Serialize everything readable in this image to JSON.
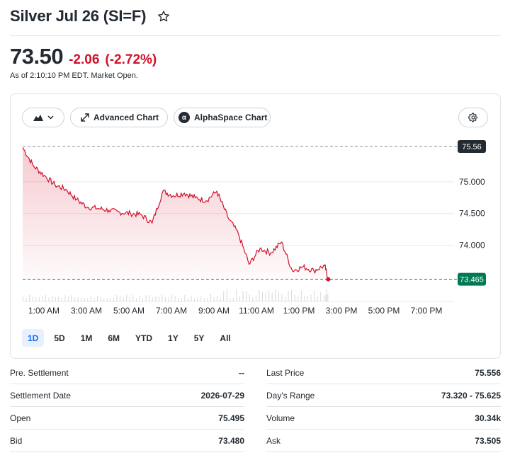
{
  "header": {
    "title": "Silver Jul 26 (SI=F)",
    "price": "73.50",
    "change": "-2.06",
    "change_pct": "(-2.72%)",
    "as_of": "As of 2:10:10 PM EDT. Market Open."
  },
  "toolbar": {
    "chart_type_icon": "mountain-chart-icon",
    "advanced_chart_label": "Advanced Chart",
    "alphaspace_chart_label": "AlphaSpace Chart",
    "alphaspace_badge": "α",
    "settings_icon": "gear-icon"
  },
  "chart": {
    "prev_close_label": "75.56",
    "last_price_label": "73.465",
    "y_ticks": [
      "75.000",
      "74.500",
      "74.000"
    ],
    "x_ticks": [
      "1:00 AM",
      "3:00 AM",
      "5:00 AM",
      "7:00 AM",
      "9:00 AM",
      "11:00 AM",
      "1:00 PM",
      "3:00 PM",
      "5:00 PM",
      "7:00 PM"
    ],
    "colors": {
      "line": "#d0112b",
      "prev_close_badge": "#232a31",
      "last_badge": "#007a55"
    }
  },
  "chart_data": {
    "type": "area",
    "title": "",
    "xlabel": "",
    "ylabel": "",
    "x": [
      "00:00",
      "00:30",
      "01:00",
      "01:30",
      "02:00",
      "02:30",
      "03:00",
      "03:30",
      "04:00",
      "04:30",
      "05:00",
      "05:30",
      "06:00",
      "06:30",
      "07:00",
      "07:30",
      "08:00",
      "08:30",
      "09:00",
      "09:30",
      "10:00",
      "10:30",
      "11:00",
      "11:30",
      "12:00",
      "12:30",
      "13:00",
      "13:30",
      "14:00",
      "14:10"
    ],
    "values": [
      75.54,
      75.25,
      75.1,
      74.95,
      74.88,
      74.72,
      74.6,
      74.58,
      74.55,
      74.52,
      74.5,
      74.48,
      74.35,
      74.85,
      74.78,
      74.82,
      74.75,
      74.7,
      74.85,
      74.45,
      74.18,
      73.7,
      73.95,
      73.88,
      74.05,
      73.6,
      73.66,
      73.6,
      73.68,
      73.465
    ],
    "ylim": [
      73.45,
      75.6
    ],
    "prev_close": 75.556,
    "grid": true,
    "legend": "none"
  },
  "ranges": {
    "items": [
      "1D",
      "5D",
      "1M",
      "6M",
      "YTD",
      "1Y",
      "5Y",
      "All"
    ],
    "active": "1D"
  },
  "stats": {
    "left": [
      {
        "label": "Pre. Settlement",
        "value": "--"
      },
      {
        "label": "Settlement Date",
        "value": "2026-07-29"
      },
      {
        "label": "Open",
        "value": "75.495"
      },
      {
        "label": "Bid",
        "value": "73.480"
      }
    ],
    "right": [
      {
        "label": "Last Price",
        "value": "75.556"
      },
      {
        "label": "Day's Range",
        "value": "73.320 - 75.625"
      },
      {
        "label": "Volume",
        "value": "30.34k"
      },
      {
        "label": "Ask",
        "value": "73.505"
      }
    ]
  }
}
